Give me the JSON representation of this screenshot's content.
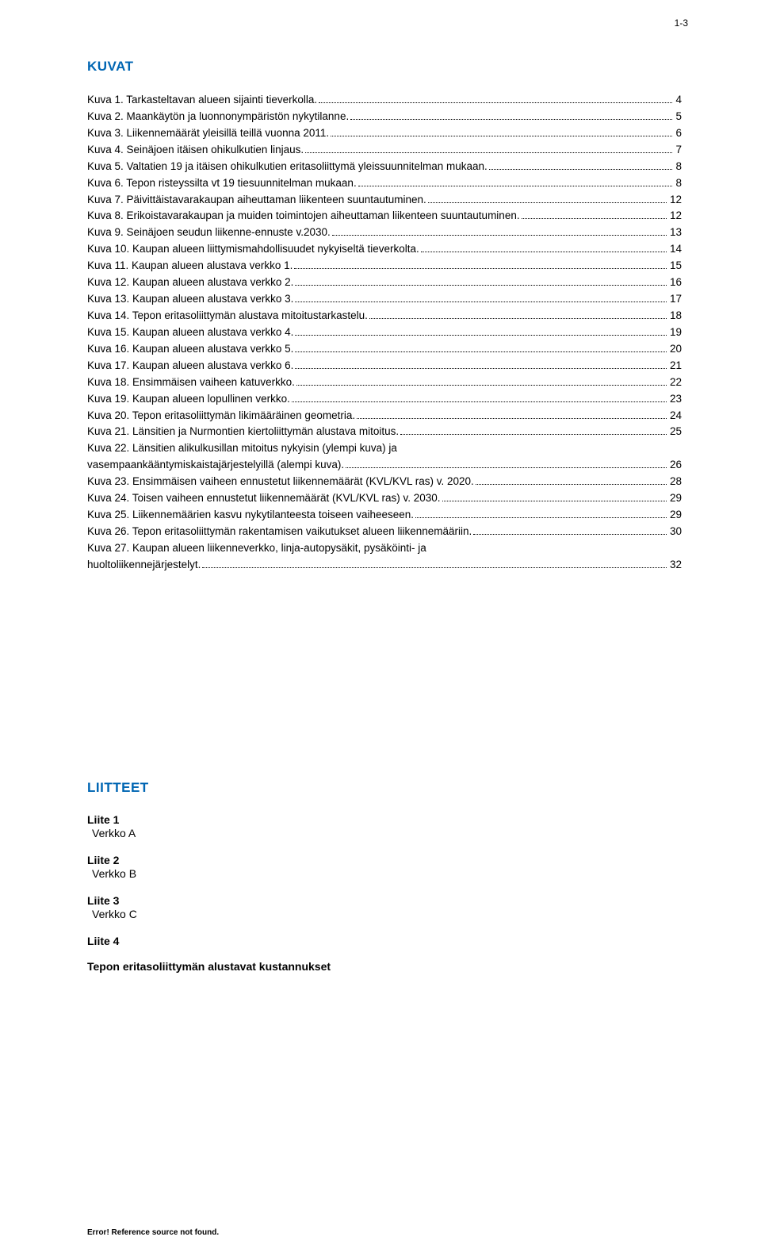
{
  "meta": {
    "page_number": "1-3",
    "colors": {
      "heading": "#0066b3",
      "text": "#000000",
      "background": "#ffffff"
    }
  },
  "headings": {
    "kuvat": "KUVAT",
    "liitteet": "LIITTEET"
  },
  "toc": [
    {
      "label": "Kuva 1. Tarkasteltavan alueen sijainti tieverkolla.",
      "page": "4"
    },
    {
      "label": "Kuva 2. Maankäytön ja luonnonympäristön nykytilanne.",
      "page": "5"
    },
    {
      "label": "Kuva 3. Liikennemäärät yleisillä teillä vuonna 2011.",
      "page": "6"
    },
    {
      "label": "Kuva 4. Seinäjoen itäisen ohikulkutien linjaus.",
      "page": "7"
    },
    {
      "label": "Kuva 5. Valtatien 19 ja itäisen ohikulkutien eritasoliittymä yleissuunnitelman mukaan.",
      "page": "8"
    },
    {
      "label": "Kuva 6. Tepon risteyssilta vt 19 tiesuunnitelman mukaan.",
      "page": "8"
    },
    {
      "label": "Kuva 7. Päivittäistavarakaupan aiheuttaman liikenteen suuntautuminen.",
      "page": "12"
    },
    {
      "label": "Kuva 8. Erikoistavarakaupan ja muiden toimintojen aiheuttaman liikenteen suuntautuminen.",
      "page": "12"
    },
    {
      "label": "Kuva 9. Seinäjoen seudun liikenne-ennuste v.2030.",
      "page": "13"
    },
    {
      "label": "Kuva 10. Kaupan alueen liittymismahdollisuudet nykyiseltä tieverkolta.",
      "page": "14"
    },
    {
      "label": "Kuva 11. Kaupan alueen alustava verkko 1.",
      "page": "15"
    },
    {
      "label": "Kuva 12. Kaupan alueen alustava verkko 2.",
      "page": "16"
    },
    {
      "label": "Kuva 13. Kaupan alueen alustava verkko 3.",
      "page": "17"
    },
    {
      "label": "Kuva 14. Tepon eritasoliittymän alustava mitoitustarkastelu.",
      "page": "18"
    },
    {
      "label": "Kuva 15. Kaupan alueen alustava verkko 4.",
      "page": "19"
    },
    {
      "label": "Kuva 16. Kaupan alueen alustava verkko 5.",
      "page": "20"
    },
    {
      "label": "Kuva 17. Kaupan alueen alustava verkko 6.",
      "page": "21"
    },
    {
      "label": "Kuva 18. Ensimmäisen vaiheen katuverkko.",
      "page": "22"
    },
    {
      "label": "Kuva 19. Kaupan alueen lopullinen verkko.",
      "page": "23"
    },
    {
      "label": "Kuva 20. Tepon eritasoliittymän likimääräinen geometria.",
      "page": "24"
    },
    {
      "label": "Kuva 21. Länsitien ja Nurmontien kiertoliittymän alustava mitoitus.",
      "page": "25"
    },
    {
      "label": "Kuva 22. Länsitien alikulkusillan mitoitus nykyisin (ylempi kuva) ja",
      "cont": true
    },
    {
      "label": "vasempaankääntymiskaistajärjestelyillä (alempi kuva).",
      "page": "26"
    },
    {
      "label": "Kuva 23. Ensimmäisen vaiheen ennustetut liikennemäärät (KVL/KVL ras) v. 2020.",
      "page": "28"
    },
    {
      "label": "Kuva 24. Toisen vaiheen ennustetut liikennemäärät (KVL/KVL ras) v. 2030.",
      "page": "29"
    },
    {
      "label": "Kuva 25. Liikennemäärien kasvu nykytilanteesta toiseen vaiheeseen.",
      "page": "29"
    },
    {
      "label": "Kuva 26. Tepon eritasoliittymän rakentamisen vaikutukset alueen liikennemääriin.",
      "page": "30"
    },
    {
      "label": "Kuva 27. Kaupan alueen liikenneverkko, linja-autopysäkit, pysäköinti- ja",
      "cont": true
    },
    {
      "label": "huoltoliikennejärjestelyt.",
      "page": "32"
    }
  ],
  "liitteet": [
    {
      "head": "Liite 1",
      "body": "Verkko A"
    },
    {
      "head": "Liite 2",
      "body": "Verkko B"
    },
    {
      "head": "Liite 3",
      "body": "Verkko C"
    },
    {
      "head": "Liite 4",
      "body_bold": "Tepon eritasoliittymän alustavat kustannukset"
    }
  ],
  "footer": {
    "error_text": "Error! Reference source not found."
  }
}
